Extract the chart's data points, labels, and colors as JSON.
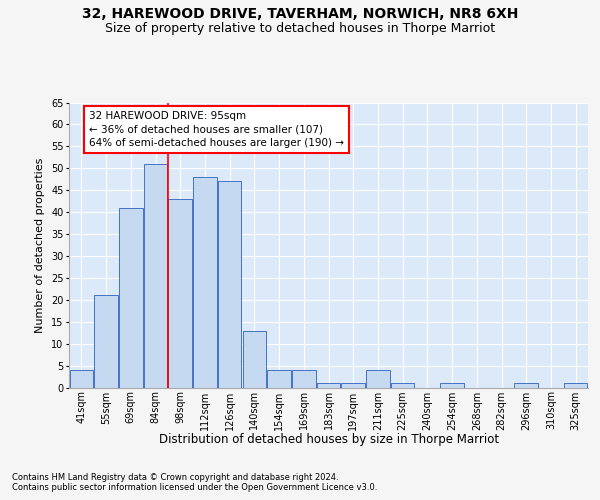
{
  "title": "32, HAREWOOD DRIVE, TAVERHAM, NORWICH, NR8 6XH",
  "subtitle": "Size of property relative to detached houses in Thorpe Marriot",
  "xlabel": "Distribution of detached houses by size in Thorpe Marriot",
  "ylabel": "Number of detached properties",
  "categories": [
    "41sqm",
    "55sqm",
    "69sqm",
    "84sqm",
    "98sqm",
    "112sqm",
    "126sqm",
    "140sqm",
    "154sqm",
    "169sqm",
    "183sqm",
    "197sqm",
    "211sqm",
    "225sqm",
    "240sqm",
    "254sqm",
    "268sqm",
    "282sqm",
    "296sqm",
    "310sqm",
    "325sqm"
  ],
  "values": [
    4,
    21,
    41,
    51,
    43,
    48,
    47,
    13,
    4,
    4,
    1,
    1,
    4,
    1,
    0,
    1,
    0,
    0,
    1,
    0,
    1
  ],
  "bar_color": "#c5d9f0",
  "bar_edge_color": "#4472c4",
  "vline_x": 3.5,
  "vline_color": "red",
  "annotation_text": "32 HAREWOOD DRIVE: 95sqm\n← 36% of detached houses are smaller (107)\n64% of semi-detached houses are larger (190) →",
  "annotation_box_color": "white",
  "annotation_box_edge_color": "red",
  "ylim": [
    0,
    65
  ],
  "yticks": [
    0,
    5,
    10,
    15,
    20,
    25,
    30,
    35,
    40,
    45,
    50,
    55,
    60,
    65
  ],
  "footer1": "Contains HM Land Registry data © Crown copyright and database right 2024.",
  "footer2": "Contains public sector information licensed under the Open Government Licence v3.0.",
  "bg_color": "#dce9f8",
  "grid_color": "#ffffff",
  "title_fontsize": 10,
  "subtitle_fontsize": 9,
  "tick_fontsize": 7,
  "ylabel_fontsize": 8,
  "xlabel_fontsize": 8.5,
  "footer_fontsize": 6,
  "annot_fontsize": 7.5
}
